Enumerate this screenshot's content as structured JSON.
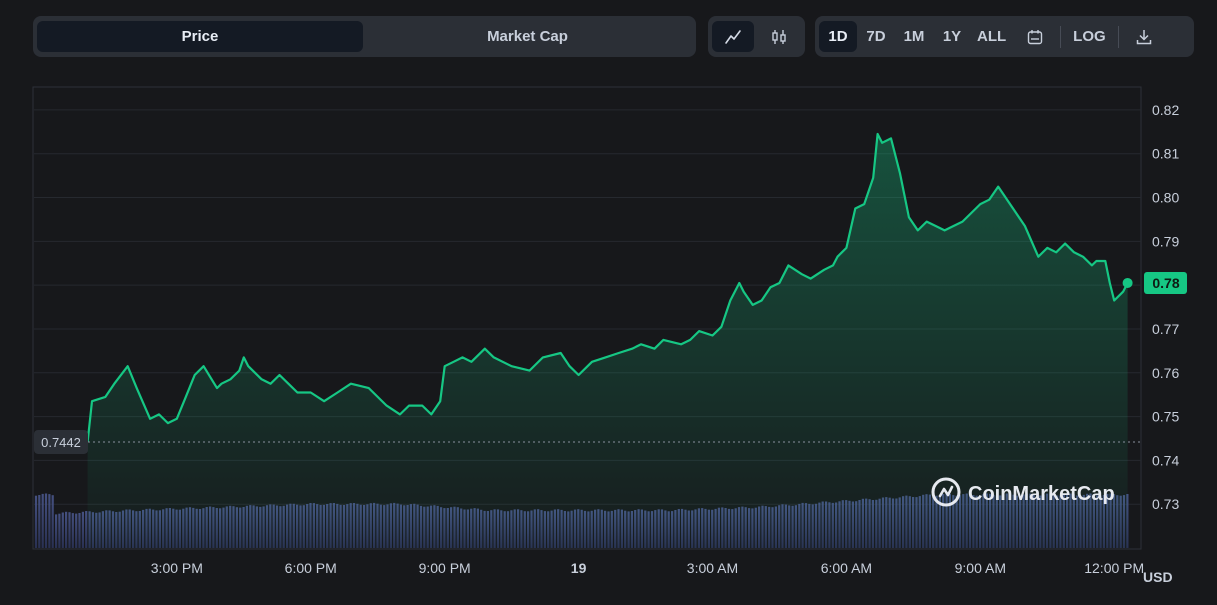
{
  "toolbar": {
    "price_label": "Price",
    "market_cap_label": "Market Cap",
    "ranges": [
      "1D",
      "7D",
      "1M",
      "1Y",
      "ALL"
    ],
    "active_range": "1D",
    "log_label": "LOG"
  },
  "icons": {
    "line_chart": "line-chart-icon",
    "candlestick": "candlestick-icon",
    "calendar": "calendar-icon",
    "download": "download-icon"
  },
  "colors": {
    "background": "#17181b",
    "line": "#16c784",
    "volume": "#3f4b7a",
    "current_badge": "#16c784"
  },
  "brand": {
    "name": "CoinMarketCap"
  },
  "currency_label": "USD",
  "chart_data": {
    "type": "area",
    "ylim": [
      0.72,
      0.825
    ],
    "y_ticks": [
      0.73,
      0.74,
      0.75,
      0.76,
      0.77,
      0.78,
      0.79,
      0.8,
      0.81,
      0.82
    ],
    "y_tick_labels": [
      "0.73",
      "0.74",
      "0.75",
      "0.76",
      "0.77",
      "0.78",
      "0.79",
      "0.80",
      "0.81",
      "0.82"
    ],
    "x_range_hours": [
      11.8,
      36.6
    ],
    "x_ticks": [
      15,
      18,
      21,
      24,
      27,
      30,
      33,
      36
    ],
    "x_tick_labels": [
      "3:00 PM",
      "6:00 PM",
      "9:00 PM",
      "19",
      "3:00 AM",
      "6:00 AM",
      "9:00 AM",
      "12:00 PM"
    ],
    "open_price": 0.7442,
    "open_price_label": "0.7442",
    "current_price_label": "0.78",
    "series": [
      {
        "hours": [
          13.0,
          13.1,
          13.4,
          13.6,
          13.9,
          14.1,
          14.4,
          14.6,
          14.8,
          15.0,
          15.2,
          15.4,
          15.6,
          15.9,
          16.0,
          16.2,
          16.4,
          16.5,
          16.6,
          16.9,
          17.1,
          17.3,
          17.5,
          17.7,
          18.0,
          18.3,
          18.6,
          18.9,
          19.3,
          19.5,
          19.7,
          20.0,
          20.2,
          20.5,
          20.7,
          20.9,
          21.0,
          21.2,
          21.4,
          21.6,
          21.9,
          22.1,
          22.5,
          22.9,
          23.2,
          23.6,
          23.8,
          24.0,
          24.3,
          24.6,
          24.9,
          25.2,
          25.4,
          25.7,
          25.9,
          26.3,
          26.5,
          26.7,
          27.0,
          27.2,
          27.4,
          27.6,
          27.7,
          27.9,
          28.1,
          28.3,
          28.5,
          28.7,
          29.0,
          29.2,
          29.5,
          29.7,
          29.8,
          29.9,
          30.0,
          30.2,
          30.4,
          30.6,
          30.7,
          30.8,
          31.0,
          31.2,
          31.4,
          31.6,
          31.8,
          32.0,
          32.2,
          32.4,
          32.6,
          32.8,
          33.0,
          33.2,
          33.4,
          33.6,
          33.8,
          34.0,
          34.3,
          34.5,
          34.7,
          34.9,
          35.1,
          35.3,
          35.5,
          35.6,
          35.8,
          35.9,
          36.0,
          36.2,
          36.3
        ],
        "values": [
          0.7442,
          0.7535,
          0.7545,
          0.7575,
          0.7615,
          0.7565,
          0.7495,
          0.7505,
          0.7485,
          0.7495,
          0.7545,
          0.7595,
          0.7615,
          0.7565,
          0.7575,
          0.7585,
          0.7605,
          0.7635,
          0.7615,
          0.7585,
          0.7575,
          0.7595,
          0.7575,
          0.7555,
          0.7555,
          0.7535,
          0.7555,
          0.7575,
          0.7565,
          0.7545,
          0.7525,
          0.7505,
          0.7525,
          0.7525,
          0.7505,
          0.7535,
          0.7615,
          0.7625,
          0.7635,
          0.7625,
          0.7655,
          0.7635,
          0.7615,
          0.7605,
          0.7635,
          0.7645,
          0.7615,
          0.7595,
          0.7625,
          0.7635,
          0.7645,
          0.7655,
          0.7665,
          0.7655,
          0.7675,
          0.7665,
          0.7675,
          0.7695,
          0.7685,
          0.7705,
          0.7765,
          0.7805,
          0.7785,
          0.7755,
          0.7765,
          0.7795,
          0.7805,
          0.7845,
          0.7825,
          0.7815,
          0.7835,
          0.7845,
          0.7865,
          0.7875,
          0.7885,
          0.7975,
          0.7985,
          0.8045,
          0.8145,
          0.8125,
          0.8135,
          0.8055,
          0.7955,
          0.7925,
          0.7945,
          0.7935,
          0.7925,
          0.7935,
          0.7945,
          0.7965,
          0.7985,
          0.7995,
          0.8025,
          0.7995,
          0.7965,
          0.7935,
          0.7865,
          0.7885,
          0.7875,
          0.7895,
          0.7875,
          0.7865,
          0.7845,
          0.7855,
          0.7855,
          0.7805,
          0.7765,
          0.7785,
          0.7805
        ]
      }
    ],
    "volume": {
      "hours": [
        12.2,
        14.0,
        16.0,
        18.0,
        20.0,
        22.0,
        24.0,
        26.0,
        28.0,
        30.0,
        32.0,
        34.0,
        36.0
      ],
      "values": [
        11,
        12,
        13,
        14,
        14,
        12,
        12,
        12,
        13,
        15,
        17,
        17,
        17
      ]
    }
  }
}
